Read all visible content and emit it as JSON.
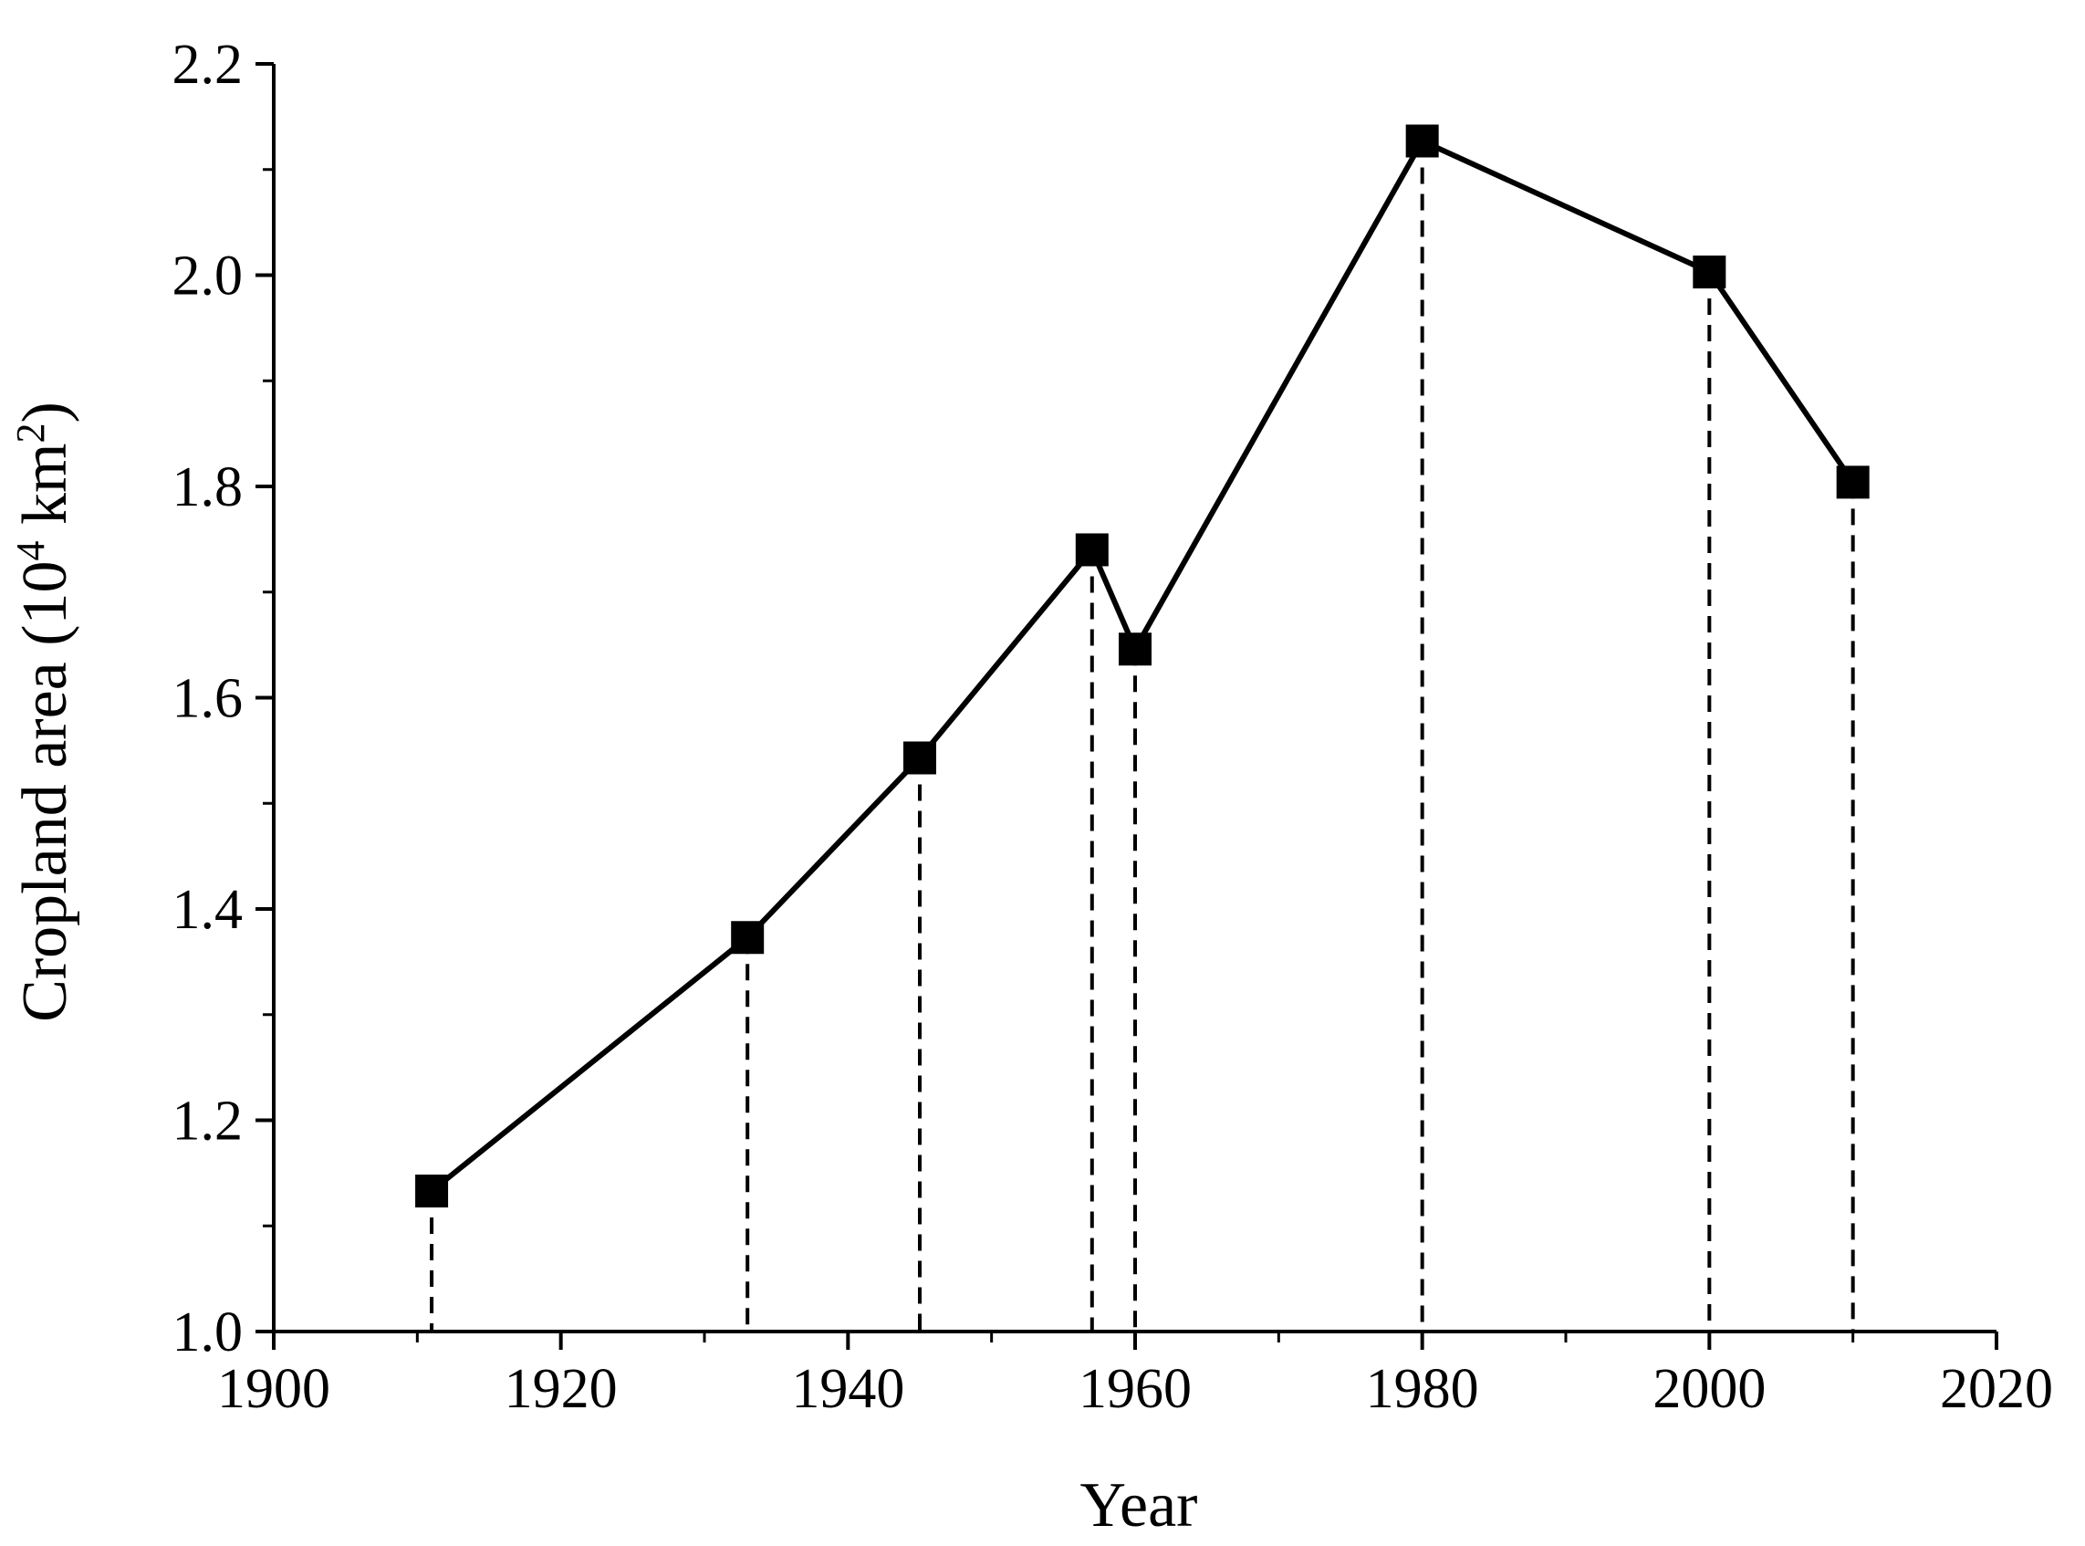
{
  "chart_data": {
    "type": "line",
    "title": "",
    "xlabel": "Year",
    "ylabel_main": "Cropland area (10",
    "ylabel_sup1": "4",
    "ylabel_mid": " km",
    "ylabel_sup2": "2",
    "ylabel_end": ")",
    "xlim": [
      1900,
      2020
    ],
    "ylim": [
      1.0,
      2.2
    ],
    "x_ticks": [
      "1900",
      "1920",
      "1940",
      "1960",
      "1980",
      "2000",
      "2020"
    ],
    "y_ticks": [
      "1.0",
      "1.2",
      "1.4",
      "1.6",
      "1.8",
      "2.0",
      "2.2"
    ],
    "x_tick_values": [
      1900,
      1920,
      1940,
      1960,
      1980,
      2000,
      2020
    ],
    "y_tick_values": [
      1.0,
      1.2,
      1.4,
      1.6,
      1.8,
      2.0,
      2.2
    ],
    "grid": false,
    "marker": "square",
    "color": "#000000",
    "series": [
      {
        "x": [
          1911,
          1933,
          1945,
          1957,
          1960,
          1980,
          2000,
          2010
        ],
        "values": [
          1.133,
          1.373,
          1.543,
          1.74,
          1.646,
          2.127,
          2.003,
          1.804
        ]
      }
    ],
    "drop_lines": true
  }
}
